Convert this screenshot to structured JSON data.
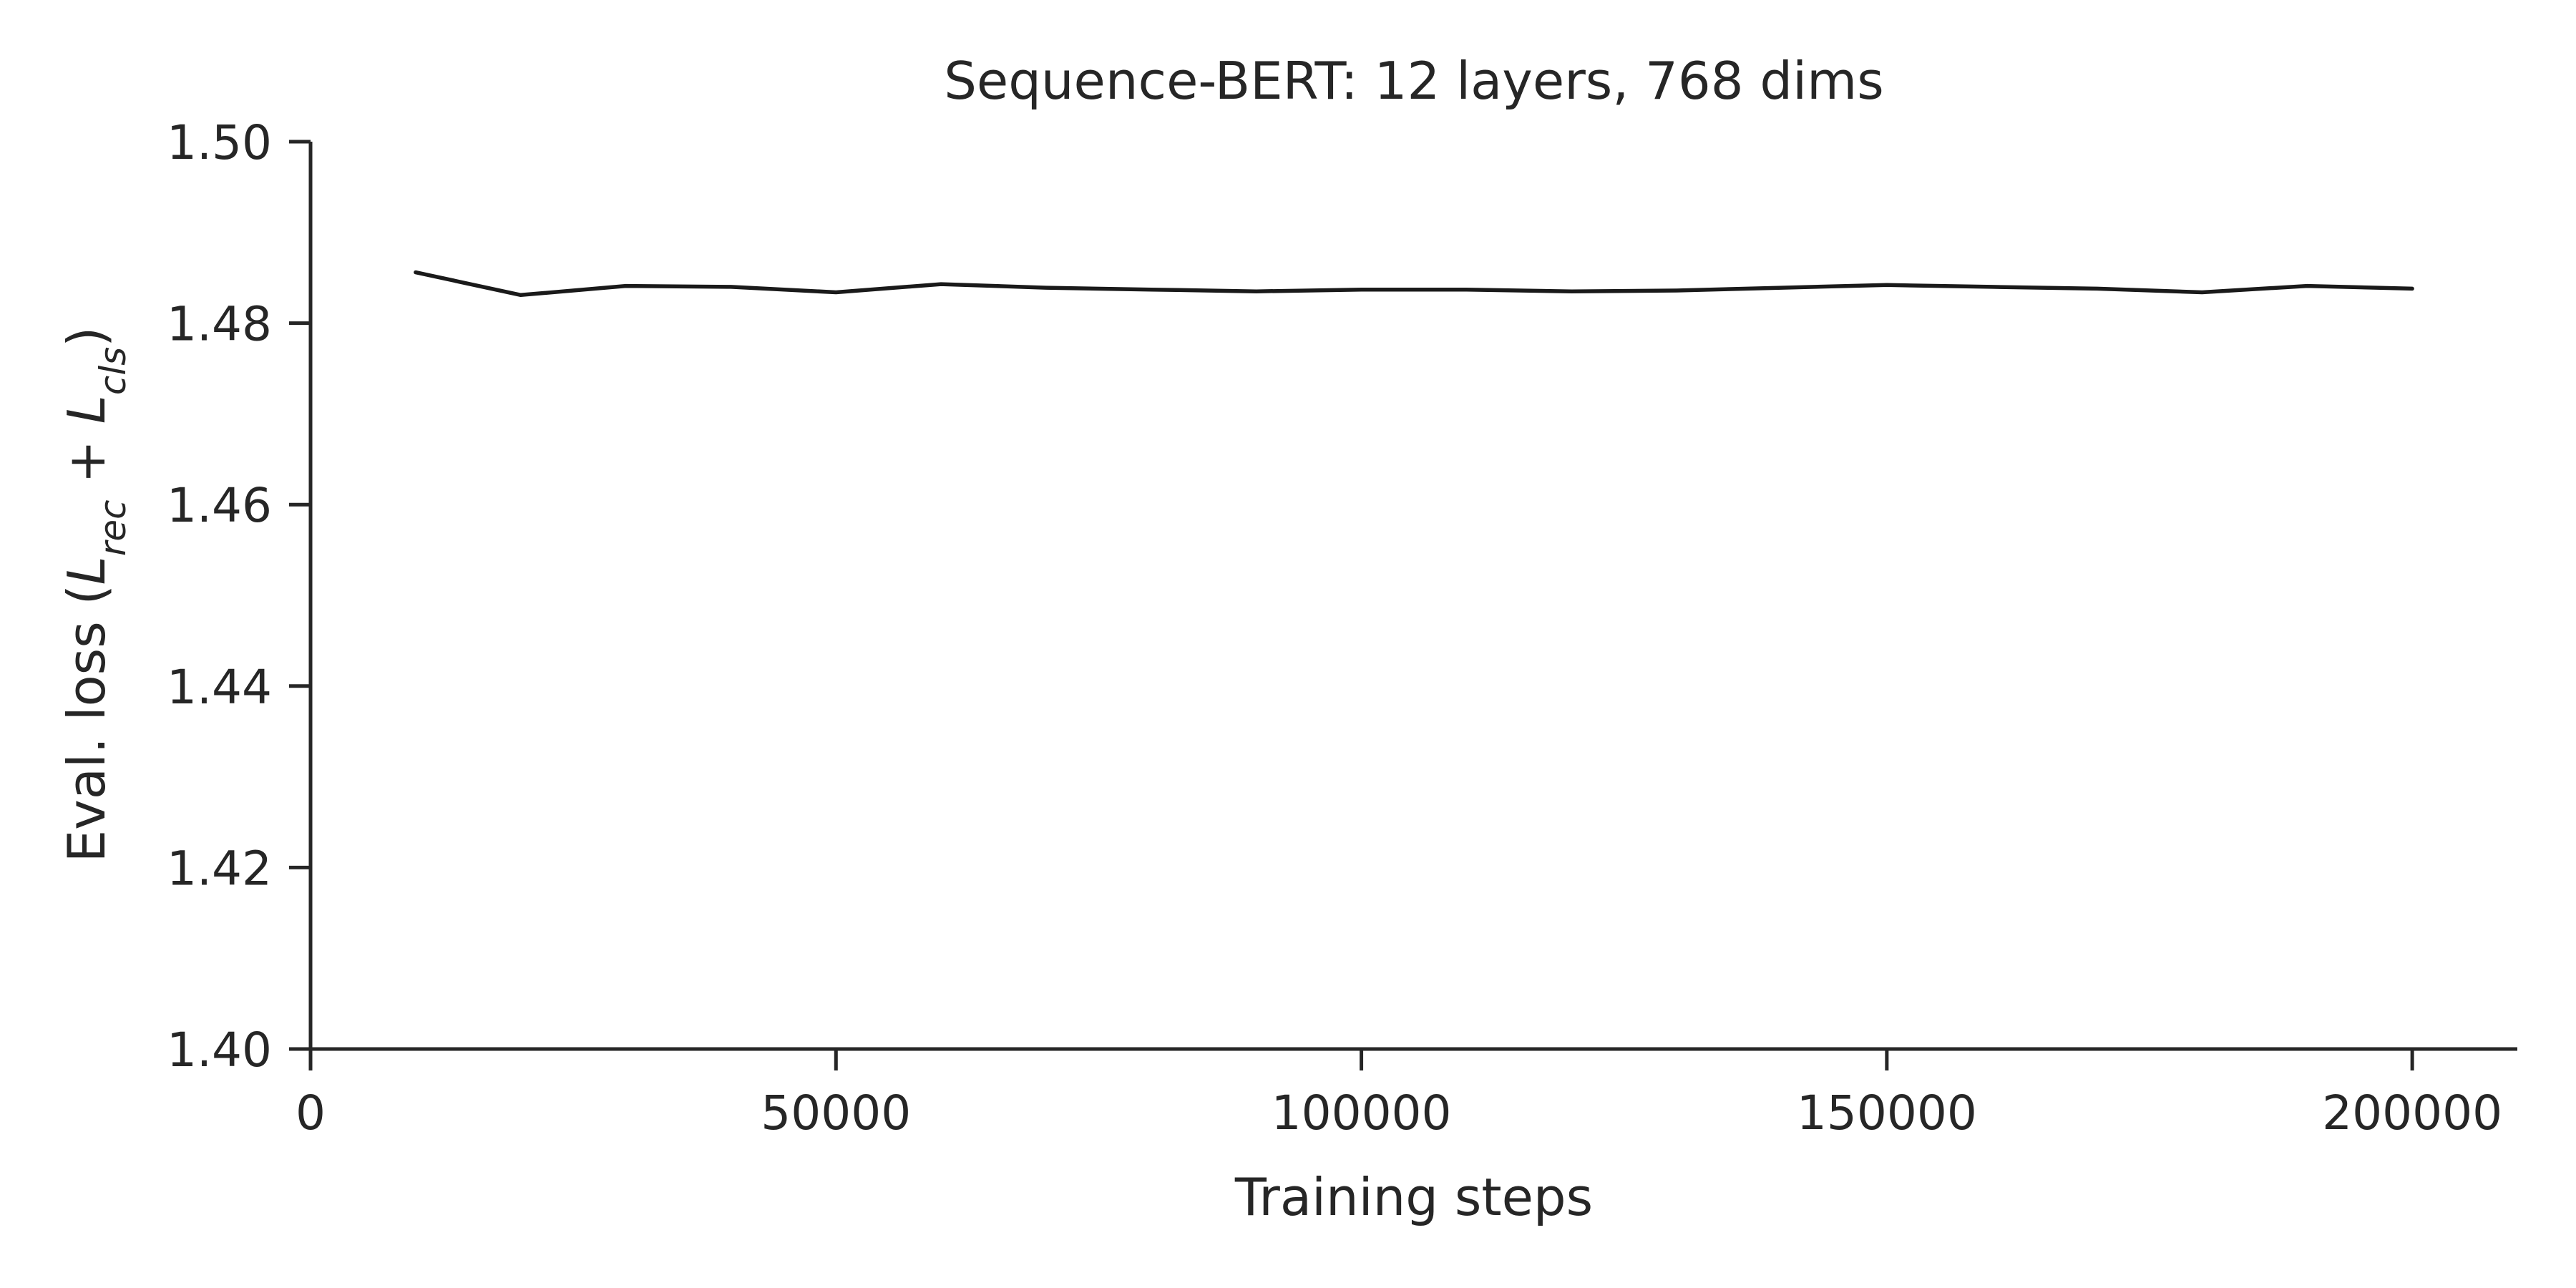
{
  "chart_data": {
    "type": "line",
    "title": "Sequence-BERT: 12 layers, 768 dims",
    "xlabel": "Training steps",
    "ylabel": {
      "prefix": "Eval. loss (",
      "term1": "L",
      "term1_sub": "rec",
      "operator": " + ",
      "term2": "L",
      "term2_sub": "cls",
      "suffix": ")"
    },
    "xlim": [
      0,
      210000
    ],
    "ylim": [
      1.4,
      1.5
    ],
    "xticks": [
      0,
      50000,
      100000,
      150000,
      200000
    ],
    "xtick_labels": [
      "0",
      "50000",
      "100000",
      "150000",
      "200000"
    ],
    "yticks": [
      1.4,
      1.42,
      1.44,
      1.46,
      1.48,
      1.5
    ],
    "ytick_labels": [
      "1.40",
      "1.42",
      "1.44",
      "1.46",
      "1.48",
      "1.50"
    ],
    "grid": false,
    "series": [
      {
        "color": "#1a1a1a",
        "x": [
          10000,
          20000,
          30000,
          40000,
          50000,
          60000,
          70000,
          80000,
          90000,
          100000,
          110000,
          120000,
          130000,
          140000,
          150000,
          160000,
          170000,
          180000,
          190000,
          200000
        ],
        "y": [
          1.4856,
          1.4831,
          1.4841,
          1.484,
          1.4834,
          1.4843,
          1.4839,
          1.4837,
          1.4835,
          1.4837,
          1.4837,
          1.4835,
          1.4836,
          1.4839,
          1.4842,
          1.484,
          1.4838,
          1.4834,
          1.4841,
          1.4838
        ]
      }
    ]
  }
}
